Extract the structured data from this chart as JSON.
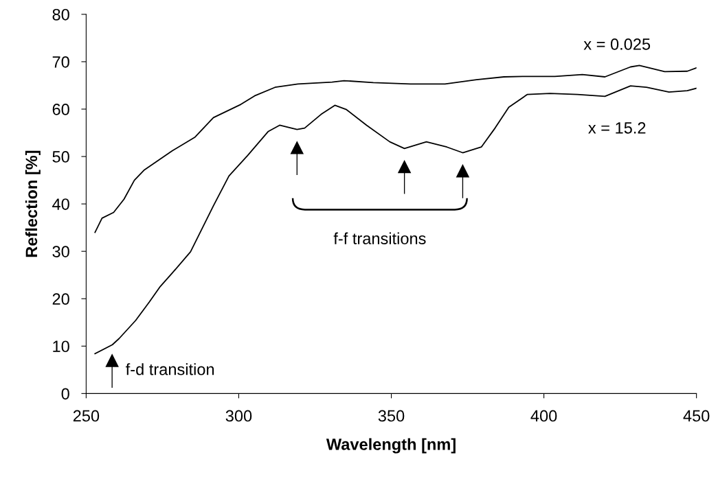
{
  "chart_data": {
    "type": "line",
    "xlabel": "Wavelength [nm]",
    "ylabel": "Reflection [%]",
    "xlim": [
      250,
      450
    ],
    "xticks": [
      250,
      300,
      350,
      400,
      450
    ],
    "ylim": [
      0,
      80
    ],
    "yticks": [
      0,
      10,
      20,
      30,
      40,
      50,
      60,
      70,
      80
    ],
    "grid": false,
    "marker": "none",
    "line_style": "solid",
    "series": [
      {
        "name": "x = 0.025",
        "color": "#000000",
        "x": [
          252.9,
          255.2,
          259,
          262.4,
          265.8,
          269.1,
          278.2,
          285.7,
          291.7,
          300.7,
          305.2,
          311.9,
          319.4,
          330.6,
          334.5,
          344.1,
          356.3,
          367.6,
          377.9,
          386.9,
          393,
          403.6,
          412.6,
          420,
          428.4,
          431.3,
          439.6,
          447,
          450
        ],
        "values": [
          34,
          37,
          38.2,
          41,
          45,
          47.2,
          51.2,
          54.1,
          58.2,
          61,
          62.8,
          64.6,
          65.3,
          65.7,
          66,
          65.6,
          65.3,
          65.3,
          66.2,
          66.8,
          66.9,
          66.9,
          67.3,
          66.8,
          68.9,
          69.2,
          67.9,
          68,
          68.7
        ]
      },
      {
        "name": "x = 15.2",
        "color": "#000000",
        "x": [
          252.9,
          258.6,
          260.8,
          266.2,
          270.7,
          274.3,
          278.2,
          284.2,
          291.7,
          296.8,
          302.9,
          309.7,
          313.4,
          319.1,
          321.6,
          327,
          331.5,
          335.3,
          341.9,
          349.5,
          354.3,
          361.5,
          368.2,
          373.4,
          379.5,
          384,
          388.5,
          394.6,
          402,
          411,
          420,
          428.4,
          433.6,
          441,
          447,
          450
        ],
        "values": [
          8.4,
          10.3,
          11.6,
          15.4,
          19.3,
          22.6,
          25.4,
          29.9,
          39.6,
          45.9,
          50.2,
          55.3,
          56.6,
          55.7,
          56,
          58.9,
          60.8,
          59.9,
          56.6,
          53.1,
          51.7,
          53.1,
          52,
          50.8,
          52,
          56,
          60.4,
          63.1,
          63.3,
          63.1,
          62.7,
          64.9,
          64.6,
          63.6,
          63.9,
          64.4
        ]
      }
    ],
    "annotations": [
      "f-f transitions",
      "f-d transition"
    ]
  }
}
